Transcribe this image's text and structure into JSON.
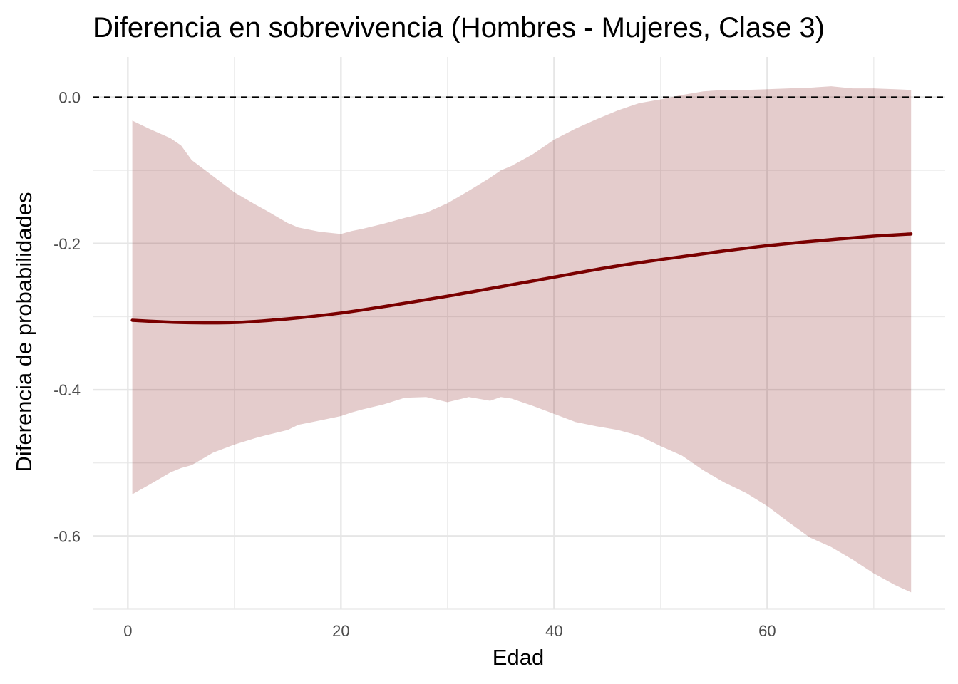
{
  "chart_data": {
    "type": "line",
    "title": "Diferencia en sobrevivencia (Hombres - Mujeres, Clase 3)",
    "xlabel": "Edad",
    "ylabel": "Diferencia de probabilidades",
    "xlim": [
      -3.3,
      76.7
    ],
    "ylim": [
      -0.7,
      0.055
    ],
    "x_ticks": [
      0,
      20,
      40,
      60
    ],
    "x_tick_labels": [
      "0",
      "20",
      "40",
      "60"
    ],
    "x_minor_ticks": [
      10,
      30,
      50,
      70
    ],
    "y_ticks": [
      -0.6,
      -0.4,
      -0.2,
      0.0
    ],
    "y_tick_labels": [
      "-0.6",
      "-0.4",
      "-0.2",
      "0.0"
    ],
    "y_minor_ticks": [
      -0.7,
      -0.5,
      -0.3,
      -0.1
    ],
    "grid": true,
    "legend": "none",
    "reference_line": {
      "y": 0.0,
      "style": "dashed",
      "color": "#000000"
    },
    "series": [
      {
        "color": "#7a0000",
        "x": [
          0.42,
          5,
          10,
          15,
          20,
          25,
          30,
          35,
          40,
          45,
          50,
          55,
          60,
          65,
          70,
          73.5
        ],
        "y": [
          -0.305,
          -0.308,
          -0.308,
          -0.303,
          -0.295,
          -0.284,
          -0.272,
          -0.259,
          -0.246,
          -0.233,
          -0.222,
          -0.212,
          -0.203,
          -0.196,
          -0.19,
          -0.187
        ]
      }
    ],
    "ribbon": {
      "color": "#7a0000",
      "opacity": 0.2,
      "x": [
        0.42,
        2,
        4,
        5,
        6,
        8,
        10,
        12,
        13,
        15,
        16,
        18,
        20,
        21,
        22,
        24,
        26,
        28,
        30,
        32,
        34,
        35,
        36,
        38,
        40,
        42,
        44,
        46,
        48,
        50,
        52,
        54,
        56,
        58,
        60,
        62,
        64,
        66,
        68,
        70,
        72,
        73.5
      ],
      "lower": [
        -0.543,
        -0.53,
        -0.513,
        -0.507,
        -0.503,
        -0.486,
        -0.475,
        -0.466,
        -0.462,
        -0.455,
        -0.448,
        -0.442,
        -0.436,
        -0.431,
        -0.427,
        -0.42,
        -0.411,
        -0.41,
        -0.417,
        -0.41,
        -0.415,
        -0.41,
        -0.412,
        -0.422,
        -0.433,
        -0.444,
        -0.45,
        -0.455,
        -0.463,
        -0.477,
        -0.49,
        -0.51,
        -0.527,
        -0.541,
        -0.559,
        -0.581,
        -0.602,
        -0.615,
        -0.632,
        -0.651,
        -0.667,
        -0.677
      ],
      "upper": [
        -0.032,
        -0.043,
        -0.056,
        -0.066,
        -0.086,
        -0.108,
        -0.13,
        -0.147,
        -0.155,
        -0.172,
        -0.178,
        -0.184,
        -0.187,
        -0.183,
        -0.18,
        -0.173,
        -0.165,
        -0.158,
        -0.145,
        -0.128,
        -0.11,
        -0.1,
        -0.094,
        -0.078,
        -0.058,
        -0.043,
        -0.03,
        -0.018,
        -0.008,
        -0.003,
        0.003,
        0.008,
        0.01,
        0.01,
        0.011,
        0.012,
        0.013,
        0.015,
        0.012,
        0.012,
        0.011,
        0.01
      ]
    }
  }
}
